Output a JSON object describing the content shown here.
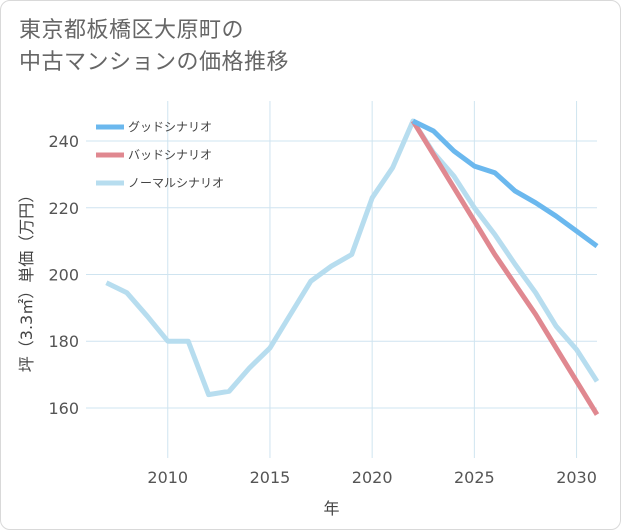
{
  "title_line1": "東京都板橋区大原町の",
  "title_line2": "中古マンションの価格推移",
  "chart_data": {
    "type": "line",
    "xlabel": "年",
    "ylabel": "坪（3.3㎡）単価（万円）",
    "xlim": [
      2006.0,
      2031.0
    ],
    "ylim": [
      145.0,
      252.0
    ],
    "xticks": [
      2010,
      2015,
      2020,
      2025,
      2030
    ],
    "yticks": [
      160,
      180,
      200,
      220,
      240
    ],
    "grid": true,
    "legend_position": "top-left",
    "series": [
      {
        "name": "グッドシナリオ",
        "color": "#6bb8ee",
        "x": [
          2022,
          2023,
          2024,
          2025,
          2026,
          2027,
          2028,
          2029,
          2030,
          2031
        ],
        "y": [
          246,
          243,
          237,
          232.5,
          230.5,
          225,
          221.5,
          217.5,
          213,
          208.5
        ]
      },
      {
        "name": "バッドシナリオ",
        "color": "#e08890",
        "x": [
          2022,
          2023,
          2024,
          2025,
          2026,
          2027,
          2028,
          2029,
          2030,
          2031
        ],
        "y": [
          246,
          236,
          226,
          216,
          206,
          197,
          188,
          178,
          168,
          158
        ]
      },
      {
        "name": "ノーマルシナリオ",
        "color": "#b7ddef",
        "x": [
          2007,
          2008,
          2009,
          2010,
          2011,
          2012,
          2013,
          2014,
          2015,
          2016,
          2017,
          2018,
          2019,
          2020,
          2021,
          2022,
          2023,
          2024,
          2025,
          2026,
          2027,
          2028,
          2029,
          2030,
          2031
        ],
        "y": [
          197.5,
          194.5,
          187.5,
          180,
          180,
          164,
          165,
          172,
          178,
          188,
          198,
          202.5,
          206,
          223,
          232,
          246,
          236.5,
          229.5,
          220,
          212,
          203,
          194.5,
          184.5,
          177.5,
          168
        ]
      }
    ]
  }
}
